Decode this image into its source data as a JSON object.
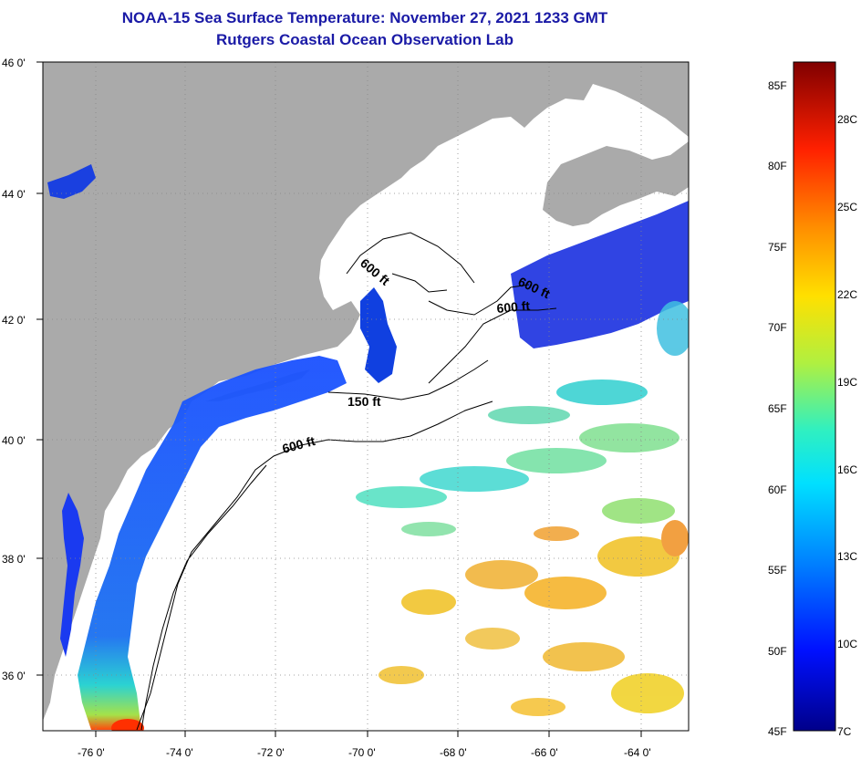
{
  "title": {
    "line1": "NOAA-15 Sea Surface Temperature:  November 27, 2021 1233 GMT",
    "line2": "Rutgers Coastal Ocean Observation Lab"
  },
  "axes": {
    "lat_labels": [
      "46 0'",
      "44 0'",
      "42 0'",
      "40 0'",
      "38 0'",
      "36 0'"
    ],
    "lon_labels": [
      "-76 0'",
      "-74 0'",
      "-72 0'",
      "-70 0'",
      "-68 0'",
      "-66 0'",
      "-64 0'"
    ]
  },
  "contours": {
    "label_600_gulf": "600 ft",
    "label_600_georges_a": "600 ft",
    "label_600_georges_b": "600 ft",
    "label_150": "150 ft",
    "label_600_shelf": "600 ft"
  },
  "colorbar": {
    "fahrenheit": [
      "85F",
      "80F",
      "75F",
      "70F",
      "65F",
      "60F",
      "55F",
      "50F",
      "45F"
    ],
    "celsius": [
      "28C",
      "25C",
      "22C",
      "19C",
      "16C",
      "13C",
      "10C",
      "7C"
    ]
  },
  "colors": {
    "land": "#aaaaaa",
    "cold": "#000080",
    "warm": "#800000",
    "title": "#1a1aa6"
  }
}
